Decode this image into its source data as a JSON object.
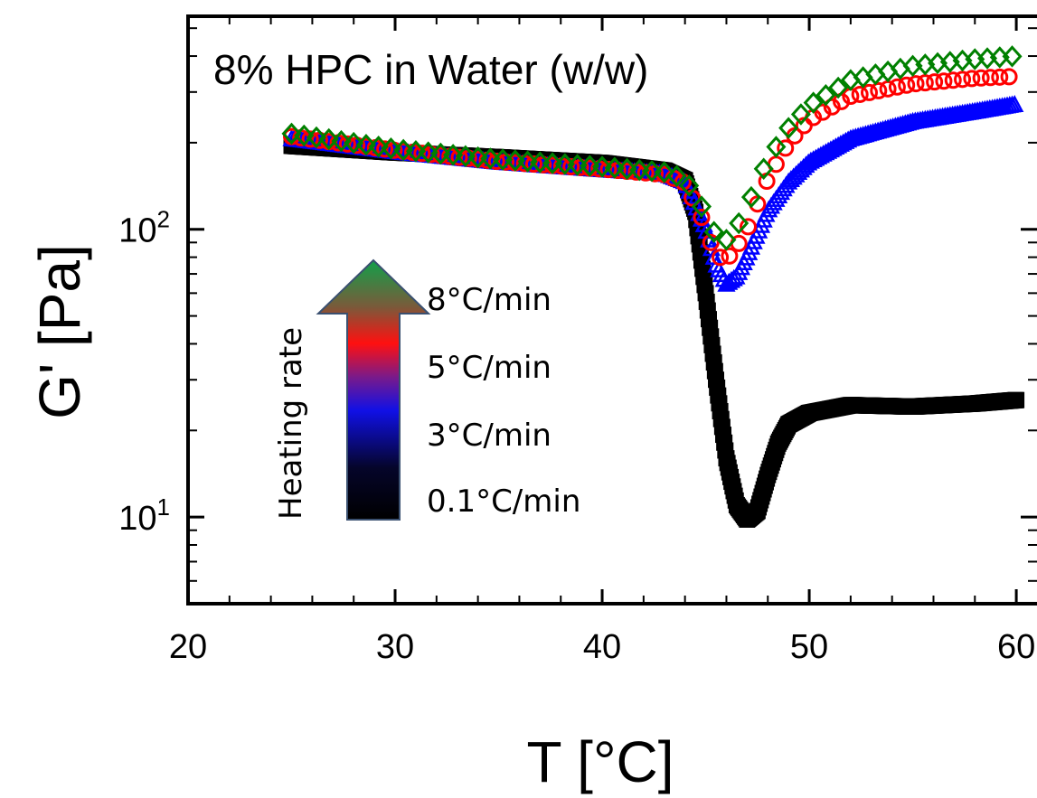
{
  "chart_data": {
    "type": "scatter",
    "title": "8% HPC in Water (w/w)",
    "xlabel": "T [°C]",
    "ylabel": "G' [Pa]",
    "xlim": [
      20,
      61
    ],
    "ylim": [
      5,
      550
    ],
    "yscale": "log",
    "x_ticks": [
      "20",
      "30",
      "40",
      "50",
      "60"
    ],
    "y_ticks": [
      {
        "value": 10,
        "base": "10",
        "exp": "1"
      },
      {
        "value": 100,
        "base": "10",
        "exp": "2"
      }
    ],
    "legend": {
      "title": "Heating rate",
      "entries": [
        "8°C/min",
        "5°C/min",
        "3°C/min",
        "0.1°C/min"
      ],
      "placement": "center-left"
    },
    "series": [
      {
        "label": "0.1°C/min",
        "color": "#000000",
        "marker": "square",
        "x": [
          25,
          30,
          35,
          40,
          43,
          44,
          44.5,
          45,
          45.5,
          46,
          46.5,
          47,
          47.5,
          48,
          48.5,
          49,
          50,
          52,
          55,
          58,
          60
        ],
        "y": [
          195,
          185,
          178,
          170,
          160,
          148,
          115,
          60,
          30,
          16,
          11,
          9.8,
          10.5,
          14,
          18,
          21,
          23,
          24.5,
          24.2,
          24.8,
          25.5
        ]
      },
      {
        "label": "3°C/min",
        "color": "#0000ff",
        "marker": "triangle",
        "x": [
          25,
          30,
          35,
          40,
          43,
          44,
          45,
          45.5,
          46,
          46.5,
          47,
          48,
          49,
          50,
          52,
          55,
          58,
          60
        ],
        "y": [
          205,
          185,
          170,
          160,
          155,
          145,
          100,
          75,
          64,
          68,
          80,
          115,
          145,
          170,
          205,
          235,
          255,
          270
        ]
      },
      {
        "label": "5°C/min",
        "color": "#ff0000",
        "marker": "circle",
        "x": [
          25,
          30,
          35,
          40,
          43,
          44,
          44.8,
          45.3,
          45.8,
          46.3,
          47,
          48,
          49,
          50,
          52,
          55,
          58,
          60
        ],
        "y": [
          210,
          188,
          172,
          162,
          155,
          145,
          110,
          88,
          78,
          82,
          100,
          150,
          200,
          240,
          290,
          320,
          335,
          340
        ]
      },
      {
        "label": "8°C/min",
        "color": "#008000",
        "marker": "diamond",
        "x": [
          25,
          30,
          35,
          40,
          43,
          44,
          44.8,
          45.3,
          45.8,
          46.3,
          47,
          48,
          49,
          50,
          52,
          55,
          58,
          60
        ],
        "y": [
          215,
          190,
          175,
          165,
          158,
          150,
          120,
          100,
          90,
          95,
          120,
          175,
          225,
          270,
          330,
          370,
          390,
          400
        ]
      }
    ]
  }
}
